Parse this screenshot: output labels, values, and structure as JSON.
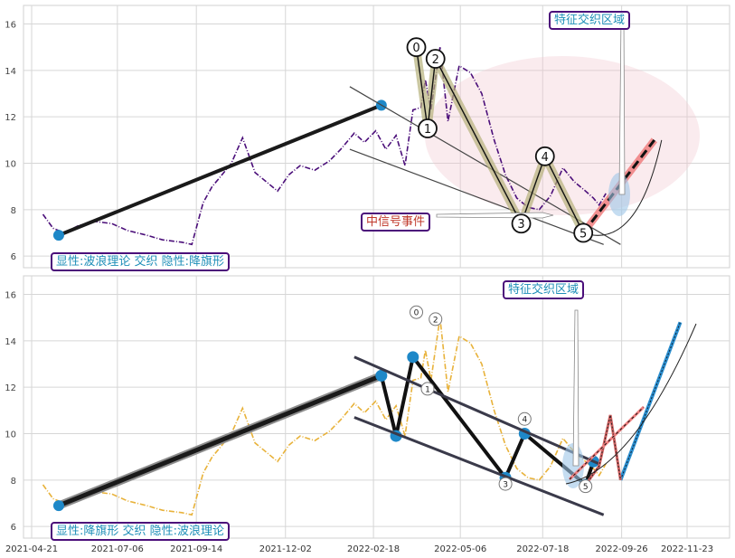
{
  "chart_data": [
    {
      "type": "line",
      "panel": "top",
      "ylim": [
        5.5,
        16.8
      ],
      "yticks": [
        6,
        8,
        10,
        12,
        14,
        16
      ],
      "grid": true,
      "series": [
        {
          "style": "dash-dot",
          "color": "#4b0f7a",
          "x": [
            "2021-05-01",
            "2021-05-10",
            "2021-05-20",
            "2021-06-01",
            "2021-06-15",
            "2021-07-01",
            "2021-07-15",
            "2021-08-01",
            "2021-08-15",
            "2021-09-01",
            "2021-09-10",
            "2021-09-20",
            "2021-09-28",
            "2021-10-05",
            "2021-10-15",
            "2021-10-25",
            "2021-11-05",
            "2021-11-15",
            "2021-11-25",
            "2021-12-05",
            "2021-12-15",
            "2021-12-28",
            "2022-01-10",
            "2022-01-20",
            "2022-02-01",
            "2022-02-10",
            "2022-02-20",
            "2022-03-01",
            "2022-03-10",
            "2022-03-18",
            "2022-03-25",
            "2022-04-01",
            "2022-04-05",
            "2022-04-10",
            "2022-04-18",
            "2022-04-25",
            "2022-05-05",
            "2022-05-15",
            "2022-05-25",
            "2022-06-05",
            "2022-06-15",
            "2022-06-25",
            "2022-07-05",
            "2022-07-15",
            "2022-07-25",
            "2022-08-05",
            "2022-08-15",
            "2022-08-25",
            "2022-09-01",
            "2022-09-06",
            "2022-09-12"
          ],
          "y": [
            7.8,
            7.2,
            7.0,
            7.3,
            7.5,
            7.4,
            7.1,
            6.9,
            6.7,
            6.6,
            6.5,
            8.3,
            9.0,
            9.4,
            10.0,
            11.1,
            9.6,
            9.2,
            8.8,
            9.5,
            9.9,
            9.7,
            10.1,
            10.6,
            11.3,
            10.9,
            11.4,
            10.6,
            11.2,
            9.9,
            12.3,
            12.4,
            13.6,
            12.3,
            15.0,
            11.8,
            14.2,
            13.9,
            13.0,
            11.0,
            9.5,
            8.5,
            8.1,
            8.0,
            8.6,
            9.8,
            9.2,
            8.8,
            8.5,
            8.2,
            8.7
          ]
        }
      ],
      "pattern_lines": [
        {
          "name": "trend-line",
          "x": [
            "2021-05-15",
            "2022-02-25"
          ],
          "y": [
            6.9,
            12.5
          ]
        },
        {
          "name": "channel-upper",
          "x": [
            "2022-01-28",
            "2022-09-25"
          ],
          "y": [
            13.3,
            6.5
          ]
        },
        {
          "name": "channel-lower",
          "x": [
            "2022-01-28",
            "2022-09-10"
          ],
          "y": [
            10.6,
            6.5
          ]
        },
        {
          "name": "wave",
          "x": [
            "2022-03-28",
            "2022-04-07",
            "2022-04-14",
            "2022-06-29",
            "2022-07-20",
            "2022-08-23"
          ],
          "y": [
            15.0,
            11.5,
            14.5,
            7.4,
            10.3,
            7.0
          ]
        }
      ],
      "wave_labels": [
        {
          "text": "0",
          "x": "2022-03-28",
          "y": 15.0
        },
        {
          "text": "1",
          "x": "2022-04-07",
          "y": 11.5
        },
        {
          "text": "2",
          "x": "2022-04-14",
          "y": 14.5
        },
        {
          "text": "3",
          "x": "2022-06-29",
          "y": 7.4
        },
        {
          "text": "4",
          "x": "2022-07-20",
          "y": 10.3
        },
        {
          "text": "5",
          "x": "2022-08-23",
          "y": 7.0
        }
      ],
      "annotations": [
        {
          "text": "特征交织区域",
          "color": "#1f8fb8"
        },
        {
          "text": "中信号事件",
          "color": "#c0392b"
        },
        {
          "text": "显性:波浪理论 交织 隐性:降旗形",
          "color": "#1f8fb8"
        }
      ]
    },
    {
      "type": "line",
      "panel": "bottom",
      "ylim": [
        5.5,
        16.8
      ],
      "yticks": [
        6,
        8,
        10,
        12,
        14,
        16
      ],
      "grid": true,
      "series": [
        {
          "style": "dash-dot",
          "color": "#e8b23a",
          "x": [
            "2021-05-01",
            "2021-05-10",
            "2021-05-20",
            "2021-06-01",
            "2021-06-15",
            "2021-07-01",
            "2021-07-15",
            "2021-08-01",
            "2021-08-15",
            "2021-09-01",
            "2021-09-10",
            "2021-09-20",
            "2021-09-28",
            "2021-10-05",
            "2021-10-15",
            "2021-10-25",
            "2021-11-05",
            "2021-11-15",
            "2021-11-25",
            "2021-12-05",
            "2021-12-15",
            "2021-12-28",
            "2022-01-10",
            "2022-01-20",
            "2022-02-01",
            "2022-02-10",
            "2022-02-20",
            "2022-03-01",
            "2022-03-10",
            "2022-03-18",
            "2022-03-25",
            "2022-04-01",
            "2022-04-05",
            "2022-04-10",
            "2022-04-18",
            "2022-04-25",
            "2022-05-05",
            "2022-05-15",
            "2022-05-25",
            "2022-06-05",
            "2022-06-15",
            "2022-06-25",
            "2022-07-05",
            "2022-07-15",
            "2022-07-25",
            "2022-08-05",
            "2022-08-15",
            "2022-08-25",
            "2022-09-01",
            "2022-09-06",
            "2022-09-12"
          ],
          "y": [
            7.8,
            7.2,
            7.0,
            7.3,
            7.5,
            7.4,
            7.1,
            6.9,
            6.7,
            6.6,
            6.5,
            8.3,
            9.0,
            9.4,
            10.0,
            11.1,
            9.6,
            9.2,
            8.8,
            9.5,
            9.9,
            9.7,
            10.1,
            10.6,
            11.3,
            10.9,
            11.4,
            10.6,
            11.2,
            9.9,
            12.3,
            12.4,
            13.6,
            12.3,
            15.0,
            11.8,
            14.2,
            13.9,
            13.0,
            11.0,
            9.5,
            8.5,
            8.1,
            8.0,
            8.6,
            9.8,
            9.2,
            8.8,
            8.5,
            8.2,
            8.7
          ]
        }
      ],
      "pattern_lines": [
        {
          "name": "trend-line",
          "x": [
            "2021-05-15",
            "2022-02-25"
          ],
          "y": [
            6.9,
            12.5
          ]
        },
        {
          "name": "flag-zigzag",
          "x": [
            "2022-02-25",
            "2022-03-10",
            "2022-03-25",
            "2022-06-15",
            "2022-07-02",
            "2022-08-25",
            "2022-09-01"
          ],
          "y": [
            12.5,
            9.9,
            13.3,
            8.1,
            10.0,
            7.8,
            8.8
          ]
        },
        {
          "name": "channel-upper",
          "x": [
            "2022-02-01",
            "2022-09-06"
          ],
          "y": [
            13.3,
            8.7
          ]
        },
        {
          "name": "channel-lower",
          "x": [
            "2022-02-01",
            "2022-09-10"
          ],
          "y": [
            10.7,
            6.5
          ]
        },
        {
          "name": "projection-blue",
          "x": [
            "2022-09-25",
            "2022-11-17"
          ],
          "y": [
            8.0,
            14.8
          ]
        },
        {
          "name": "projection-red",
          "x": [
            "2022-08-25",
            "2022-09-06",
            "2022-09-16",
            "2022-09-25"
          ],
          "y": [
            7.8,
            8.6,
            10.8,
            8.0
          ]
        }
      ],
      "wave_labels": [
        {
          "text": "0",
          "x": "2022-03-28",
          "y": 15.0
        },
        {
          "text": "1",
          "x": "2022-04-07",
          "y": 11.7
        },
        {
          "text": "2",
          "x": "2022-04-14",
          "y": 14.7
        },
        {
          "text": "3",
          "x": "2022-06-15",
          "y": 7.6
        },
        {
          "text": "4",
          "x": "2022-07-02",
          "y": 10.4
        },
        {
          "text": "5",
          "x": "2022-08-25",
          "y": 7.5
        }
      ],
      "x_tick_labels": [
        "2021-04-21",
        "2021-07-06",
        "2021-09-14",
        "2021-12-02",
        "2022-02-18",
        "2022-05-06",
        "2022-07-18",
        "2022-09-26",
        "2022-11-23"
      ],
      "annotations": [
        {
          "text": "特征交织区域",
          "color": "#1f8fb8"
        },
        {
          "text": "显性:降旗形 交织 隐性:波浪理论",
          "color": "#1f8fb8"
        }
      ]
    }
  ]
}
